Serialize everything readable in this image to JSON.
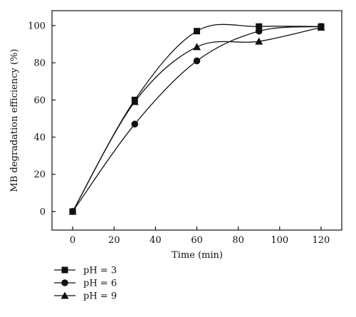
{
  "chart_data": {
    "type": "line",
    "title": "",
    "xlabel": "Time (min)",
    "ylabel": "MB degradation efficiency (%)",
    "xlim": [
      -10,
      130
    ],
    "ylim": [
      -10,
      108
    ],
    "x_ticks": [
      0,
      20,
      40,
      60,
      80,
      100,
      120
    ],
    "y_ticks": [
      0,
      20,
      40,
      60,
      80,
      100
    ],
    "grid": false,
    "legend_position": "bottom-left, below plot",
    "x": [
      0,
      30,
      60,
      90,
      120
    ],
    "series": [
      {
        "name": "pH = 3",
        "marker": "square",
        "values": [
          0,
          60,
          97,
          99.5,
          99.5
        ]
      },
      {
        "name": "pH = 6",
        "marker": "circle",
        "values": [
          0,
          47,
          81,
          97,
          99.5
        ]
      },
      {
        "name": "pH = 9",
        "marker": "triangle",
        "values": [
          0,
          59,
          88.5,
          91.5,
          99
        ]
      }
    ],
    "colors": {
      "line": "#111111",
      "axis": "#111111",
      "background": "#ffffff"
    }
  }
}
